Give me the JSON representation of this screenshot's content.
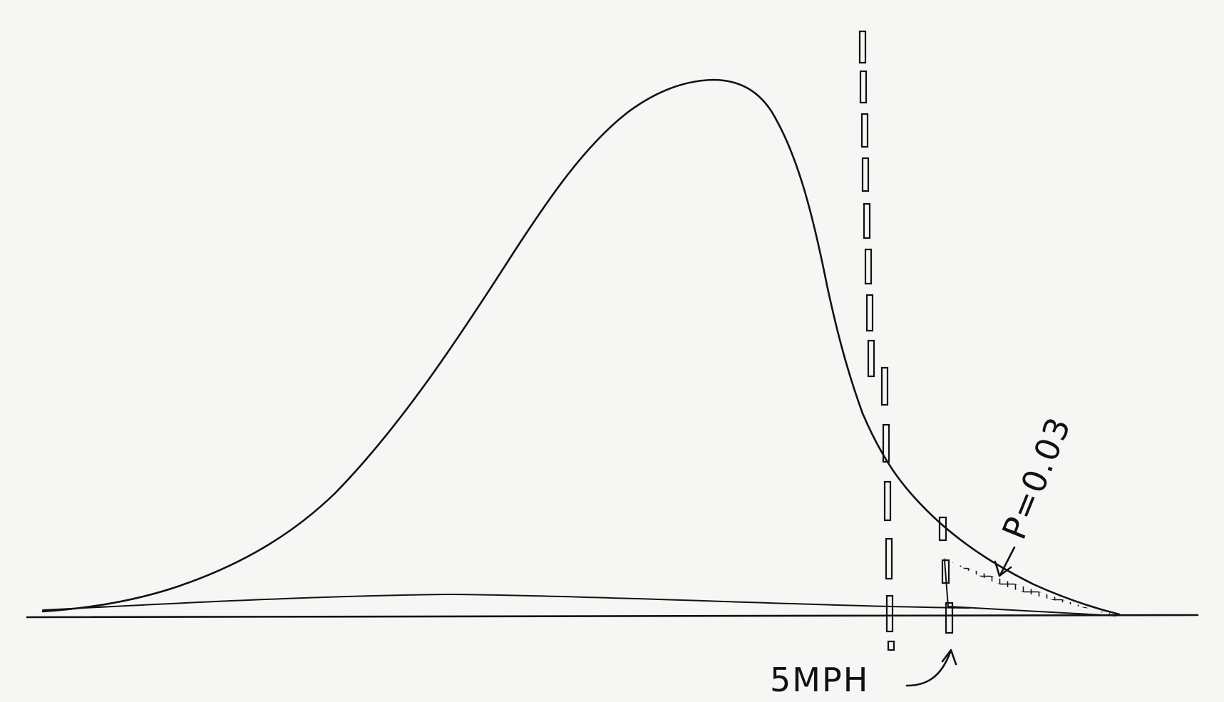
{
  "labels": {
    "threshold": "5MPH",
    "p_value": "P=0.03"
  },
  "colors": {
    "ink": "#111111",
    "paper": "#f6f6f4"
  }
}
